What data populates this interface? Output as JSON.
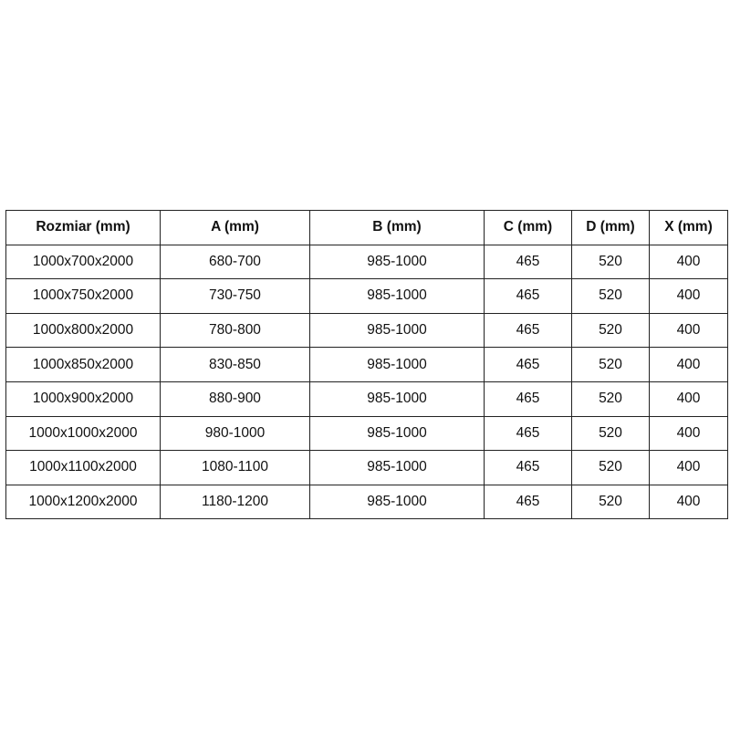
{
  "table": {
    "headers": [
      "Rozmiar (mm)",
      "A (mm)",
      "B (mm)",
      "C (mm)",
      "D (mm)",
      "X (mm)"
    ],
    "rows": [
      [
        "1000x700x2000",
        "680-700",
        "985-1000",
        "465",
        "520",
        "400"
      ],
      [
        "1000x750x2000",
        "730-750",
        "985-1000",
        "465",
        "520",
        "400"
      ],
      [
        "1000x800x2000",
        "780-800",
        "985-1000",
        "465",
        "520",
        "400"
      ],
      [
        "1000x850x2000",
        "830-850",
        "985-1000",
        "465",
        "520",
        "400"
      ],
      [
        "1000x900x2000",
        "880-900",
        "985-1000",
        "465",
        "520",
        "400"
      ],
      [
        "1000x1000x2000",
        "980-1000",
        "985-1000",
        "465",
        "520",
        "400"
      ],
      [
        "1000x1100x2000",
        "1080-1100",
        "985-1000",
        "465",
        "520",
        "400"
      ],
      [
        "1000x1200x2000",
        "1180-1200",
        "985-1000",
        "465",
        "520",
        "400"
      ]
    ]
  }
}
